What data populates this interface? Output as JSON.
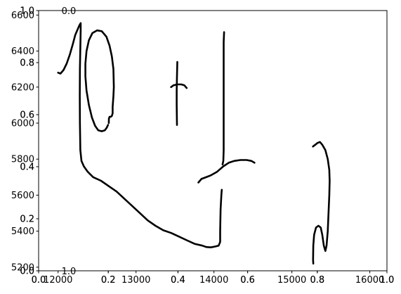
{
  "chart_data": {
    "type": "line",
    "title": "",
    "xlabel": "",
    "ylabel": "",
    "grid": false,
    "legend": "none",
    "stroke_color": "#000000",
    "axes": [
      {
        "name": "stroke-axes",
        "xlim": [
          11750,
          16220
        ],
        "ylim": [
          5180,
          6625
        ],
        "x_ticks": [
          12000,
          13000,
          14000,
          15000,
          16000
        ],
        "x_tick_labels": [
          "12000",
          "13000",
          "14000",
          "15000",
          "16000"
        ],
        "y_ticks": [
          5200,
          5400,
          5600,
          5800,
          6000,
          6200,
          6400,
          6600
        ],
        "y_tick_labels": [
          "5200",
          "5400",
          "5600",
          "5800",
          "6000",
          "6200",
          "6400",
          "6600"
        ]
      },
      {
        "name": "overlay-axes-a",
        "xlim": [
          0,
          1
        ],
        "ylim": [
          0,
          1
        ],
        "x_ticks": [
          0,
          0.2,
          0.4,
          0.6,
          0.8,
          1.0
        ],
        "x_tick_labels": [
          "0.0",
          "0.2",
          "0.4",
          "0.6",
          "0.8",
          "1.0"
        ],
        "y_ticks": [
          0,
          0.2,
          0.4,
          0.6,
          0.8,
          1.0
        ],
        "y_tick_labels": [
          "0.0",
          "0.2",
          "0.4",
          "0.6",
          "0.8",
          "1.0"
        ]
      },
      {
        "name": "overlay-axes-b",
        "xlim": [
          0,
          1
        ],
        "ylim": [
          0,
          1
        ],
        "x_ticks": [
          0,
          0.2,
          0.4,
          0.6,
          0.8,
          1.0
        ],
        "x_tick_labels": [
          "0.0",
          "0.2",
          "0.4",
          "0.6",
          "0.8",
          "1.0"
        ],
        "y_ticks": [
          0,
          0.2,
          0.4,
          0.6,
          0.8,
          1.0
        ],
        "y_tick_labels": [
          "0.0",
          "0.2",
          "0.4",
          "0.6",
          "0.8",
          "1.0"
        ]
      },
      {
        "name": "overlay-axes-rotated",
        "x_ticks": [
          0,
          1
        ],
        "x_tick_labels": [
          "0.0",
          "1.0"
        ]
      }
    ],
    "series": [
      {
        "points": [
          [
            12000,
            6280
          ],
          [
            12030,
            6275
          ],
          [
            12070,
            6295
          ],
          [
            12110,
            6330
          ],
          [
            12150,
            6380
          ],
          [
            12190,
            6440
          ],
          [
            12220,
            6490
          ],
          [
            12250,
            6520
          ],
          [
            12275,
            6545
          ],
          [
            12290,
            6555
          ],
          [
            12290,
            6520
          ],
          [
            12285,
            6420
          ],
          [
            12280,
            6300
          ],
          [
            12278,
            6150
          ],
          [
            12280,
            6000
          ],
          [
            12285,
            5850
          ],
          [
            12300,
            5790
          ],
          [
            12330,
            5760
          ],
          [
            12380,
            5730
          ],
          [
            12450,
            5700
          ],
          [
            12550,
            5680
          ],
          [
            12650,
            5650
          ],
          [
            12750,
            5620
          ],
          [
            12850,
            5580
          ],
          [
            12950,
            5540
          ],
          [
            13050,
            5500
          ],
          [
            13150,
            5460
          ],
          [
            13250,
            5430
          ],
          [
            13350,
            5405
          ],
          [
            13450,
            5390
          ],
          [
            13550,
            5370
          ],
          [
            13650,
            5350
          ],
          [
            13750,
            5330
          ],
          [
            13850,
            5320
          ],
          [
            13900,
            5312
          ],
          [
            13960,
            5310
          ],
          [
            14020,
            5315
          ],
          [
            14060,
            5320
          ],
          [
            14080,
            5340
          ],
          [
            14080,
            5400
          ],
          [
            14085,
            5520
          ],
          [
            14095,
            5600
          ],
          [
            14100,
            5630
          ]
        ]
      },
      {
        "points": [
          [
            12650,
            6000
          ],
          [
            12652,
            6025
          ],
          [
            12660,
            6035
          ],
          [
            12675,
            6035
          ],
          [
            12690,
            6040
          ],
          [
            12700,
            6055
          ],
          [
            12700,
            6090
          ],
          [
            12710,
            6150
          ],
          [
            12715,
            6200
          ],
          [
            12710,
            6300
          ],
          [
            12690,
            6370
          ],
          [
            12660,
            6430
          ],
          [
            12620,
            6480
          ],
          [
            12560,
            6510
          ],
          [
            12500,
            6515
          ],
          [
            12440,
            6500
          ],
          [
            12395,
            6460
          ],
          [
            12365,
            6400
          ],
          [
            12350,
            6330
          ],
          [
            12350,
            6260
          ],
          [
            12365,
            6180
          ],
          [
            12395,
            6100
          ],
          [
            12435,
            6030
          ],
          [
            12475,
            5985
          ],
          [
            12515,
            5960
          ],
          [
            12560,
            5955
          ],
          [
            12600,
            5960
          ],
          [
            12625,
            5975
          ],
          [
            12640,
            5990
          ]
        ]
      },
      {
        "points": [
          [
            13450,
            6200
          ],
          [
            13480,
            6210
          ],
          [
            13530,
            6215
          ],
          [
            13580,
            6215
          ],
          [
            13620,
            6210
          ],
          [
            13650,
            6195
          ]
        ]
      },
      {
        "points": [
          [
            13525,
            5990
          ],
          [
            13522,
            6100
          ],
          [
            13522,
            6180
          ],
          [
            13525,
            6260
          ],
          [
            13530,
            6340
          ]
        ]
      },
      {
        "points": [
          [
            13800,
            5670
          ],
          [
            13840,
            5690
          ],
          [
            13900,
            5700
          ],
          [
            13960,
            5710
          ],
          [
            14040,
            5730
          ],
          [
            14120,
            5760
          ],
          [
            14190,
            5780
          ],
          [
            14260,
            5790
          ],
          [
            14340,
            5795
          ],
          [
            14420,
            5795
          ],
          [
            14480,
            5790
          ],
          [
            14520,
            5780
          ]
        ]
      },
      {
        "points": [
          [
            14110,
            5770
          ],
          [
            14120,
            5790
          ],
          [
            14125,
            5850
          ],
          [
            14125,
            5950
          ],
          [
            14125,
            6050
          ],
          [
            14125,
            6200
          ],
          [
            14125,
            6350
          ],
          [
            14125,
            6450
          ],
          [
            14130,
            6505
          ]
        ]
      },
      {
        "points": [
          [
            15270,
            5870
          ],
          [
            15300,
            5880
          ],
          [
            15330,
            5890
          ],
          [
            15360,
            5895
          ],
          [
            15390,
            5880
          ],
          [
            15430,
            5850
          ],
          [
            15460,
            5800
          ],
          [
            15480,
            5740
          ],
          [
            15485,
            5680
          ],
          [
            15480,
            5600
          ],
          [
            15470,
            5500
          ],
          [
            15460,
            5400
          ],
          [
            15445,
            5320
          ],
          [
            15430,
            5290
          ],
          [
            15410,
            5320
          ],
          [
            15390,
            5380
          ],
          [
            15370,
            5420
          ],
          [
            15340,
            5430
          ],
          [
            15310,
            5420
          ],
          [
            15285,
            5380
          ],
          [
            15275,
            5320
          ],
          [
            15272,
            5240
          ],
          [
            15275,
            5220
          ]
        ]
      }
    ]
  }
}
